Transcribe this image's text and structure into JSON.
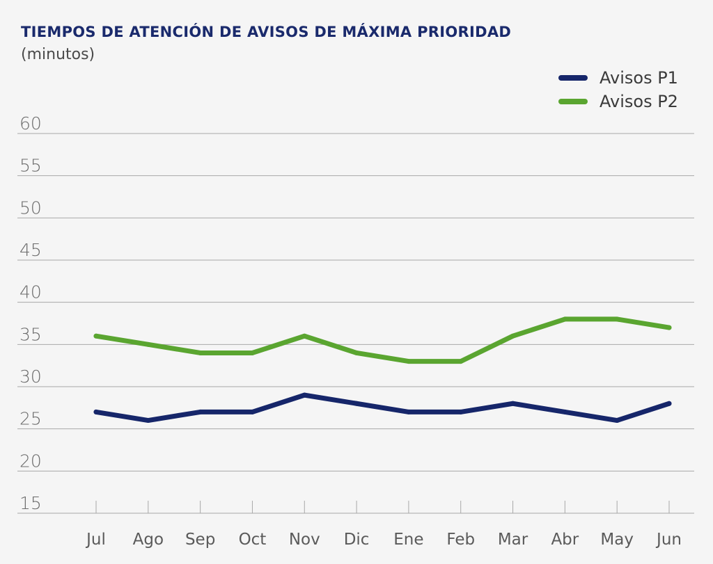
{
  "chart_data": {
    "type": "line",
    "title": "TIEMPOS DE ATENCIÓN DE AVISOS DE MÁXIMA PRIORIDAD",
    "subtitle": "(minutos)",
    "xlabel": "",
    "ylabel": "",
    "categories": [
      "Jul",
      "Ago",
      "Sep",
      "Oct",
      "Nov",
      "Dic",
      "Ene",
      "Feb",
      "Mar",
      "Abr",
      "May",
      "Jun"
    ],
    "ylim": [
      15,
      60
    ],
    "yticks": [
      15,
      20,
      25,
      30,
      35,
      40,
      45,
      50,
      55,
      60
    ],
    "grid": true,
    "legend_position": "top-right",
    "series": [
      {
        "name": "Avisos P1",
        "color": "#16266a",
        "values": [
          27,
          26,
          27,
          27,
          29,
          28,
          27,
          27,
          28,
          27,
          26,
          28
        ]
      },
      {
        "name": "Avisos P2",
        "color": "#5aa530",
        "values": [
          36,
          35,
          34,
          34,
          36,
          34,
          33,
          33,
          36,
          38,
          38,
          37
        ]
      }
    ]
  }
}
